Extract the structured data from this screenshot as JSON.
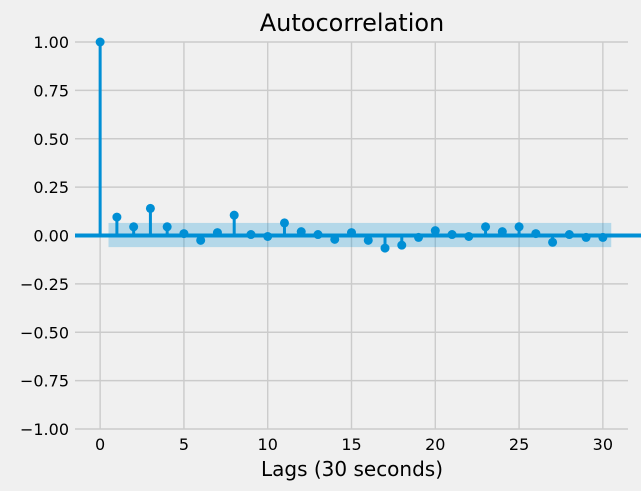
{
  "chart_data": {
    "type": "stem",
    "title": "Autocorrelation",
    "xlabel": "Lags (30 seconds)",
    "ylabel": "",
    "xlim": [
      -1.5,
      31.5
    ],
    "ylim": [
      -1.0,
      1.0
    ],
    "x_ticks": [
      0,
      5,
      10,
      15,
      20,
      25,
      30
    ],
    "y_ticks": [
      -1.0,
      -0.75,
      -0.5,
      -0.25,
      0.0,
      0.25,
      0.5,
      0.75,
      1.0
    ],
    "x_tick_labels": [
      "0",
      "5",
      "10",
      "15",
      "20",
      "25",
      "30"
    ],
    "y_tick_labels": [
      "−1.00",
      "−0.75",
      "−0.50",
      "−0.25",
      "0.00",
      "0.25",
      "0.50",
      "0.75",
      "1.00"
    ],
    "grid": true,
    "lags": [
      0,
      1,
      2,
      3,
      4,
      5,
      6,
      7,
      8,
      9,
      10,
      11,
      12,
      13,
      14,
      15,
      16,
      17,
      18,
      19,
      20,
      21,
      22,
      23,
      24,
      25,
      26,
      27,
      28,
      29,
      30
    ],
    "values": [
      1.0,
      0.095,
      0.045,
      0.14,
      0.045,
      0.01,
      -0.025,
      0.015,
      0.105,
      0.005,
      -0.005,
      0.065,
      0.02,
      0.005,
      -0.02,
      0.015,
      -0.025,
      -0.065,
      -0.05,
      -0.01,
      0.025,
      0.005,
      -0.005,
      0.045,
      0.02,
      0.045,
      0.01,
      -0.035,
      0.005,
      -0.01,
      -0.01
    ],
    "confidence_band": {
      "x_range": [
        0.5,
        30.5
      ],
      "upper": 0.065,
      "lower": -0.06
    },
    "colors": {
      "stem": "#008fd5",
      "band": "#008fd5",
      "background": "#f0f0f0",
      "grid": "#cbcbcb"
    }
  }
}
